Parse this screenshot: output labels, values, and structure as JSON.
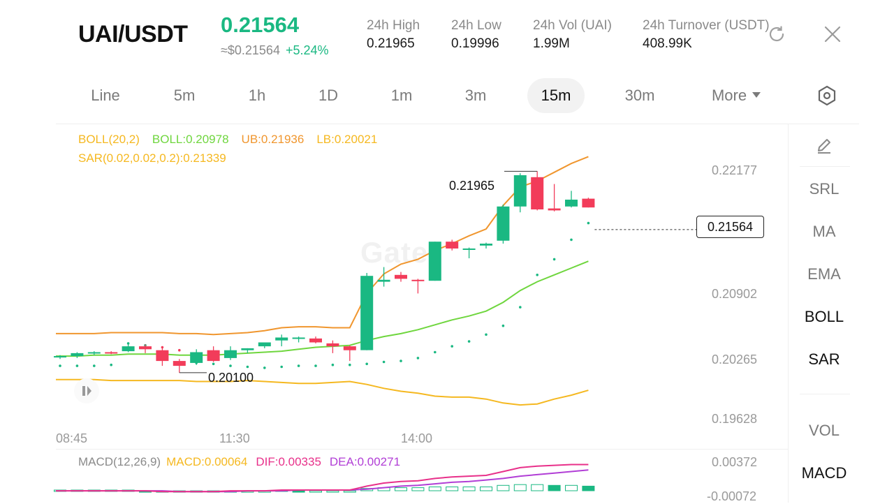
{
  "header": {
    "pair": "UAI/USDT",
    "last_price": "0.21564",
    "fiat_price": "≈$0.21564",
    "change_pct": "+5.24%",
    "stats": [
      {
        "label": "24h  High",
        "value": "0.21965"
      },
      {
        "label": "24h  Low",
        "value": "0.19996"
      },
      {
        "label": "24h  Vol (UAI)",
        "value": "1.99M"
      },
      {
        "label": "24h  Turnover (USDT)",
        "value": "408.99K"
      }
    ],
    "icons": {
      "refresh": "refresh-icon",
      "close": "close-icon"
    }
  },
  "intervals": {
    "items": [
      "Line",
      "5m",
      "1h",
      "1D",
      "1m",
      "3m",
      "15m",
      "30m",
      "More"
    ],
    "selected": "15m",
    "settings_icon": "hexagon-settings-icon"
  },
  "legend": {
    "boll_params": "BOLL(20,2)",
    "boll": "BOLL:0.20978",
    "ub": "UB:0.21936",
    "lb": "LB:0.20021",
    "sar": "SAR(0.02,0.02,0.2):0.21339"
  },
  "macd_legend": {
    "params": "MACD(12,26,9)",
    "macd": "MACD:0.00064",
    "dif": "DIF:0.00335",
    "dea": "DEA:0.00271"
  },
  "price_axis": [
    "0.22177",
    "0.20902",
    "0.20265",
    "0.19628"
  ],
  "macd_axis": [
    "0.00372",
    "-0.00072"
  ],
  "time_axis": [
    "08:45",
    "11:30",
    "14:00"
  ],
  "current_price_tag": "0.21564",
  "high_marker": "0.21965",
  "low_marker": "0.20100",
  "watermark": "Gate",
  "side_tools": [
    "SRL",
    "MA",
    "EMA",
    "BOLL",
    "SAR",
    "VOL",
    "MACD"
  ],
  "side_active": [
    "BOLL",
    "SAR",
    "MACD"
  ],
  "side_icons": {
    "draw": "pencil-icon"
  },
  "colors": {
    "up": "#1ab882",
    "down": "#f23c5a",
    "boll_mid": "#6fd63e",
    "boll_ub": "#f0962e",
    "boll_lb": "#f5b820",
    "macd": "#f5b820",
    "dif": "#e8308a",
    "dea": "#b13ed6"
  },
  "chart_data": {
    "type": "candlestick",
    "interval": "15m",
    "x_ticks": [
      "08:45",
      "11:30",
      "14:00"
    ],
    "y_ticks": [
      0.22177,
      0.20902,
      0.20265,
      0.19628
    ],
    "ohlc": [
      {
        "o": 0.2026,
        "h": 0.2028,
        "l": 0.2024,
        "c": 0.2027
      },
      {
        "o": 0.2027,
        "h": 0.2031,
        "l": 0.2025,
        "c": 0.203
      },
      {
        "o": 0.203,
        "h": 0.2032,
        "l": 0.2028,
        "c": 0.2031
      },
      {
        "o": 0.2031,
        "h": 0.2032,
        "l": 0.2029,
        "c": 0.203
      },
      {
        "o": 0.2032,
        "h": 0.204,
        "l": 0.2031,
        "c": 0.2037
      },
      {
        "o": 0.2037,
        "h": 0.2039,
        "l": 0.203,
        "c": 0.2034
      },
      {
        "o": 0.2033,
        "h": 0.2035,
        "l": 0.2017,
        "c": 0.2022
      },
      {
        "o": 0.2022,
        "h": 0.2024,
        "l": 0.201,
        "c": 0.2017
      },
      {
        "o": 0.202,
        "h": 0.2034,
        "l": 0.2018,
        "c": 0.2031
      },
      {
        "o": 0.2033,
        "h": 0.2037,
        "l": 0.2021,
        "c": 0.2022
      },
      {
        "o": 0.2025,
        "h": 0.2037,
        "l": 0.2023,
        "c": 0.2033
      },
      {
        "o": 0.2033,
        "h": 0.2035,
        "l": 0.203,
        "c": 0.2035
      },
      {
        "o": 0.2037,
        "h": 0.2041,
        "l": 0.2035,
        "c": 0.2041
      },
      {
        "o": 0.2043,
        "h": 0.2049,
        "l": 0.2037,
        "c": 0.2046
      },
      {
        "o": 0.2046,
        "h": 0.2047,
        "l": 0.2041,
        "c": 0.2046
      },
      {
        "o": 0.2045,
        "h": 0.2047,
        "l": 0.204,
        "c": 0.2041
      },
      {
        "o": 0.204,
        "h": 0.2043,
        "l": 0.203,
        "c": 0.2037
      },
      {
        "o": 0.2037,
        "h": 0.2038,
        "l": 0.2022,
        "c": 0.2033
      },
      {
        "o": 0.2033,
        "h": 0.2112,
        "l": 0.2033,
        "c": 0.2109
      },
      {
        "o": 0.2103,
        "h": 0.2118,
        "l": 0.2098,
        "c": 0.2105
      },
      {
        "o": 0.211,
        "h": 0.2113,
        "l": 0.2103,
        "c": 0.2106
      },
      {
        "o": 0.2105,
        "h": 0.2106,
        "l": 0.2091,
        "c": 0.2104
      },
      {
        "o": 0.2104,
        "h": 0.2144,
        "l": 0.2104,
        "c": 0.2144
      },
      {
        "o": 0.2144,
        "h": 0.2146,
        "l": 0.2135,
        "c": 0.2137
      },
      {
        "o": 0.2136,
        "h": 0.2138,
        "l": 0.2127,
        "c": 0.2137
      },
      {
        "o": 0.214,
        "h": 0.2143,
        "l": 0.2137,
        "c": 0.2142
      },
      {
        "o": 0.2145,
        "h": 0.2182,
        "l": 0.2142,
        "c": 0.218
      },
      {
        "o": 0.218,
        "h": 0.2214,
        "l": 0.2174,
        "c": 0.2212
      },
      {
        "o": 0.221,
        "h": 0.2216,
        "l": 0.2176,
        "c": 0.2177
      },
      {
        "o": 0.2178,
        "h": 0.2203,
        "l": 0.2175,
        "c": 0.2176
      },
      {
        "o": 0.218,
        "h": 0.2196,
        "l": 0.2179,
        "c": 0.2187
      },
      {
        "o": 0.2188,
        "h": 0.2189,
        "l": 0.2179,
        "c": 0.2179
      }
    ],
    "boll_mid": [
      0.2027,
      0.2027,
      0.2028,
      0.2028,
      0.2029,
      0.2029,
      0.2029,
      0.2028,
      0.2028,
      0.2028,
      0.2029,
      0.203,
      0.2031,
      0.2032,
      0.2034,
      0.2036,
      0.2037,
      0.2038,
      0.2043,
      0.2047,
      0.205,
      0.2054,
      0.2059,
      0.2064,
      0.2068,
      0.2073,
      0.2082,
      0.2094,
      0.2103,
      0.211,
      0.2117,
      0.2124
    ],
    "boll_ub": [
      0.205,
      0.205,
      0.205,
      0.2051,
      0.2051,
      0.2051,
      0.2051,
      0.205,
      0.205,
      0.2049,
      0.205,
      0.2051,
      0.2053,
      0.2056,
      0.2057,
      0.2057,
      0.2056,
      0.2056,
      0.2091,
      0.2111,
      0.2121,
      0.2126,
      0.2135,
      0.2142,
      0.215,
      0.2157,
      0.2181,
      0.22,
      0.2206,
      0.2215,
      0.2224,
      0.2231
    ],
    "boll_lb": [
      0.2003,
      0.2003,
      0.2003,
      0.2002,
      0.2002,
      0.2002,
      0.2002,
      0.2002,
      0.2001,
      0.2001,
      0.2001,
      0.2002,
      0.2001,
      0.2,
      0.1999,
      0.1999,
      0.2,
      0.2001,
      0.1998,
      0.1994,
      0.1991,
      0.1989,
      0.1986,
      0.1985,
      0.1985,
      0.1983,
      0.1979,
      0.1977,
      0.1978,
      0.1983,
      0.1987,
      0.1992
    ],
    "sar": [
      0.2017,
      0.2017,
      0.2017,
      0.2018,
      0.204,
      0.2038,
      0.2036,
      0.2033,
      0.202,
      0.2019,
      0.2017,
      0.2016,
      0.2015,
      0.2016,
      0.2017,
      0.2017,
      0.2018,
      0.2018,
      0.2019,
      0.2021,
      0.2022,
      0.2025,
      0.2031,
      0.2037,
      0.2042,
      0.2049,
      0.2058,
      0.2077,
      0.211,
      0.2126,
      0.2146,
      0.2163
    ],
    "macd_series": {
      "dif": [
        0.0,
        0.0,
        0.0,
        0.0,
        0.0,
        0.0,
        -0.0001,
        -0.0001,
        -0.0001,
        -0.0001,
        0.0,
        0.0,
        0.0,
        0.0001,
        0.0001,
        0.0001,
        0.0001,
        0.0001,
        0.0006,
        0.001,
        0.0012,
        0.0013,
        0.0016,
        0.0018,
        0.0019,
        0.002,
        0.0025,
        0.003,
        0.0032,
        0.0033,
        0.0034,
        0.0034
      ],
      "dea": [
        0.0,
        0.0,
        0.0,
        0.0,
        0.0,
        0.0,
        0.0,
        -0.0001,
        -0.0001,
        -0.0001,
        -0.0001,
        0.0,
        0.0,
        0.0,
        0.0001,
        0.0001,
        0.0001,
        0.0001,
        0.0002,
        0.0004,
        0.0006,
        0.0007,
        0.0009,
        0.0011,
        0.0012,
        0.0014,
        0.0016,
        0.0019,
        0.0021,
        0.0023,
        0.0025,
        0.0027
      ],
      "hist": [
        0.0001,
        0.0001,
        0.0001,
        0.0001,
        0.0001,
        0.0,
        0.0,
        0.0,
        0.0,
        0.0,
        0.0,
        0.0,
        0.0,
        0.0001,
        0.0,
        0.0,
        0.0,
        0.0,
        0.0003,
        0.0004,
        0.0004,
        0.0004,
        0.0005,
        0.0005,
        0.0005,
        0.0005,
        0.0007,
        0.0008,
        0.0008,
        0.0007,
        0.0007,
        0.0006
      ]
    },
    "macd_ylim": [
      -0.00072,
      0.00372
    ]
  }
}
